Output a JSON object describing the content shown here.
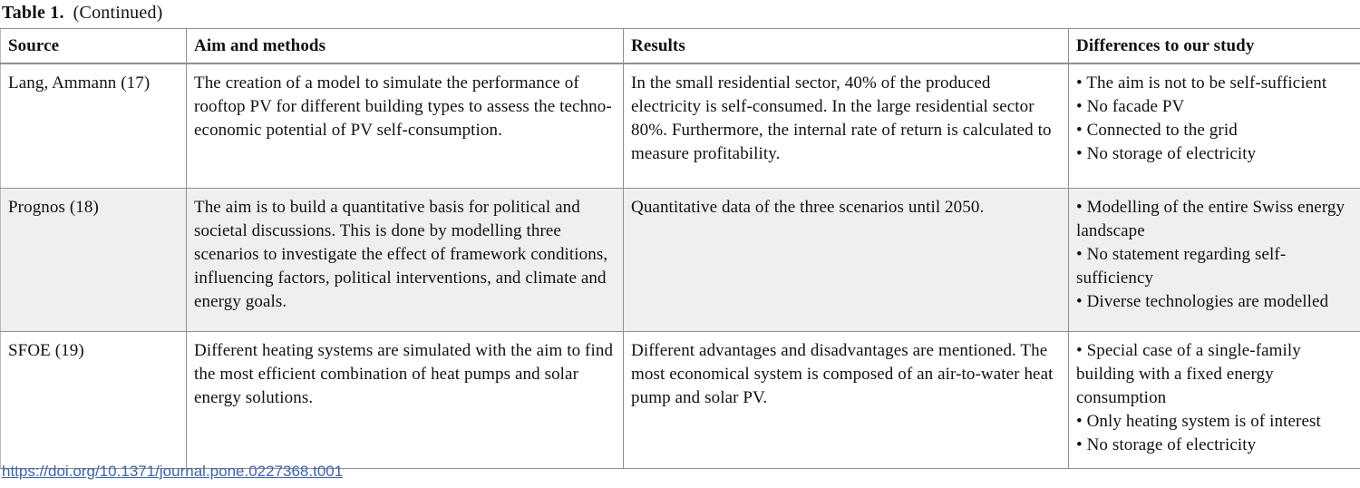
{
  "title": {
    "label": "Table 1.",
    "suffix": "(Continued)"
  },
  "table": {
    "columns": [
      "Source",
      "Aim and methods",
      "Results",
      "Differences to our study"
    ],
    "bullet": "•",
    "rows": [
      {
        "source": "Lang, Ammann (17)",
        "aim": "The creation of a model to simulate the performance of rooftop PV for different building types to assess the techno-economic potential of PV self-consumption.",
        "results": "In the small residential sector, 40% of the produced electricity is self-consumed. In the large residential sector 80%. Furthermore, the internal rate of return is calculated to measure profitability.",
        "differences": [
          "The aim is not to be self-sufficient",
          "No facade PV",
          "Connected to the grid",
          "No storage of electricity"
        ],
        "shaded": false
      },
      {
        "source": "Prognos (18)",
        "aim": "The aim is to build a quantitative basis for political and societal discussions. This is done by modelling three scenarios to investigate the effect of framework conditions, influencing factors, political interventions, and climate and energy goals.",
        "results": "Quantitative data of the three scenarios until 2050.",
        "differences": [
          "Modelling of the entire Swiss energy landscape",
          "No statement regarding self-sufficiency",
          "Diverse technologies are modelled"
        ],
        "shaded": true
      },
      {
        "source": "SFOE (19)",
        "aim": "Different heating systems are simulated with the aim to find the most efficient combination of heat pumps and solar energy solutions.",
        "results": "Different advantages and disadvantages are mentioned. The most economical system is composed of an air-to-water heat pump and solar PV.",
        "differences": [
          "Special case of a single-family building with a fixed energy consumption",
          "Only heating system is of interest",
          "No storage of electricity"
        ],
        "shaded": false
      }
    ]
  },
  "footer": {
    "doi_link": "https://doi.org/10.1371/journal.pone.0227368.t001"
  },
  "colors": {
    "link": "#3c63af",
    "row_shade": "#efefef",
    "border": "#8f8f8f"
  }
}
